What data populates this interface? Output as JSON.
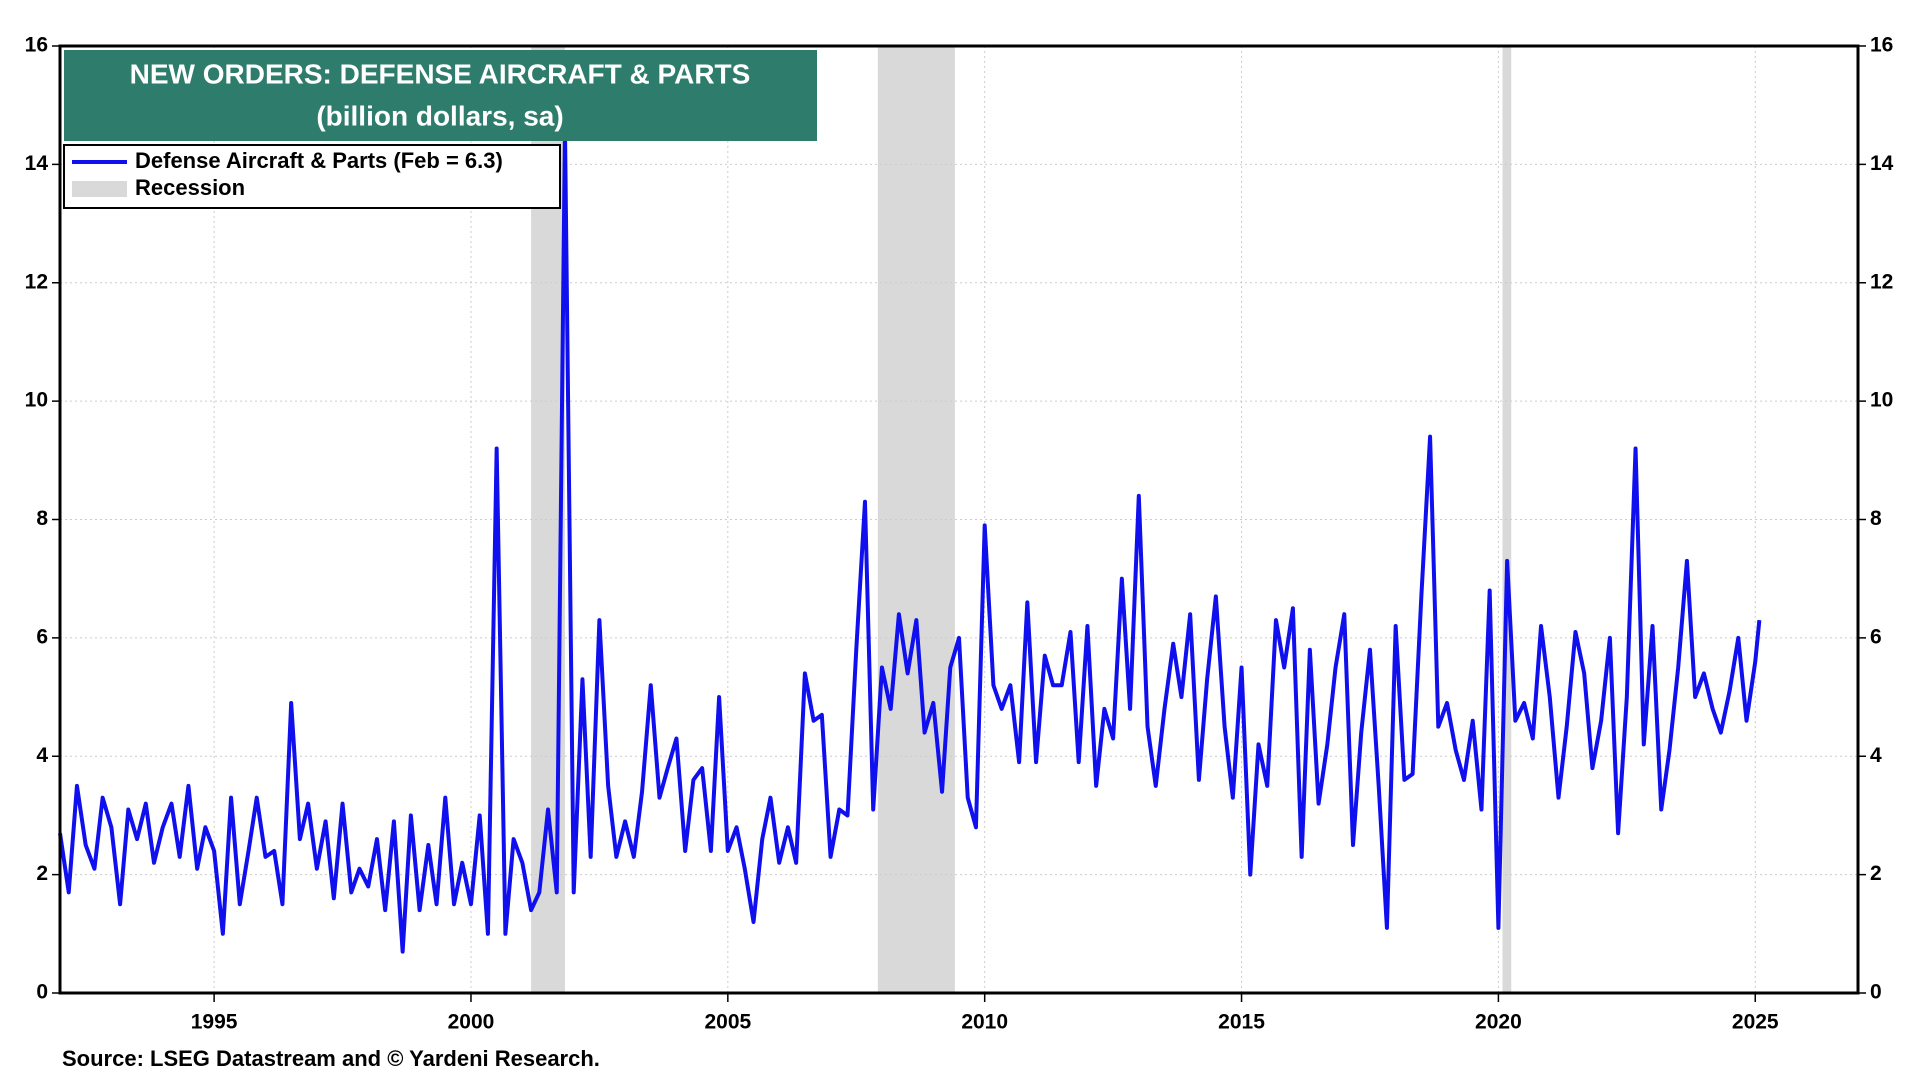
{
  "chart_data": {
    "type": "line",
    "title": "NEW ORDERS:  DEFENSE AIRCRAFT & PARTS",
    "subtitle": "(billion dollars, sa)",
    "source": "Source: LSEG Datastream and © Yardeni Research.",
    "recession_label": "Recession",
    "recession_color": "#d9d9d9",
    "recessions": [
      [
        2001.17,
        2001.83
      ],
      [
        2007.92,
        2009.42
      ],
      [
        2020.08,
        2020.25
      ]
    ],
    "xlim": [
      1992,
      2027
    ],
    "xticks": [
      1995,
      2000,
      2005,
      2010,
      2015,
      2020,
      2025
    ],
    "ylim": [
      0,
      16
    ],
    "yticks": [
      0,
      2,
      4,
      6,
      8,
      10,
      12,
      14,
      16
    ],
    "grid": true,
    "x": [
      1992,
      1992.17,
      1992.33,
      1992.5,
      1992.67,
      1992.83,
      1993,
      1993.17,
      1993.33,
      1993.5,
      1993.67,
      1993.83,
      1994,
      1994.17,
      1994.33,
      1994.5,
      1994.67,
      1994.83,
      1995,
      1995.17,
      1995.33,
      1995.5,
      1995.67,
      1995.83,
      1996,
      1996.17,
      1996.33,
      1996.5,
      1996.67,
      1996.83,
      1997,
      1997.17,
      1997.33,
      1997.5,
      1997.67,
      1997.83,
      1998,
      1998.17,
      1998.33,
      1998.5,
      1998.67,
      1998.83,
      1999,
      1999.17,
      1999.33,
      1999.5,
      1999.67,
      1999.83,
      2000,
      2000.17,
      2000.33,
      2000.5,
      2000.67,
      2000.83,
      2001,
      2001.17,
      2001.33,
      2001.5,
      2001.67,
      2001.83,
      2002,
      2002.17,
      2002.33,
      2002.5,
      2002.67,
      2002.83,
      2003,
      2003.17,
      2003.33,
      2003.5,
      2003.67,
      2003.83,
      2004,
      2004.17,
      2004.33,
      2004.5,
      2004.67,
      2004.83,
      2005,
      2005.17,
      2005.33,
      2005.5,
      2005.67,
      2005.83,
      2006,
      2006.17,
      2006.33,
      2006.5,
      2006.67,
      2006.83,
      2007,
      2007.17,
      2007.33,
      2007.5,
      2007.67,
      2007.83,
      2008,
      2008.17,
      2008.33,
      2008.5,
      2008.67,
      2008.83,
      2009,
      2009.17,
      2009.33,
      2009.5,
      2009.67,
      2009.83,
      2010,
      2010.17,
      2010.33,
      2010.5,
      2010.67,
      2010.83,
      2011,
      2011.17,
      2011.33,
      2011.5,
      2011.67,
      2011.83,
      2012,
      2012.17,
      2012.33,
      2012.5,
      2012.67,
      2012.83,
      2013,
      2013.17,
      2013.33,
      2013.5,
      2013.67,
      2013.83,
      2014,
      2014.17,
      2014.33,
      2014.5,
      2014.67,
      2014.83,
      2015,
      2015.17,
      2015.33,
      2015.5,
      2015.67,
      2015.83,
      2016,
      2016.17,
      2016.33,
      2016.5,
      2016.67,
      2016.83,
      2017,
      2017.17,
      2017.33,
      2017.5,
      2017.67,
      2017.83,
      2018,
      2018.17,
      2018.33,
      2018.5,
      2018.67,
      2018.83,
      2019,
      2019.17,
      2019.33,
      2019.5,
      2019.67,
      2019.83,
      2020,
      2020.17,
      2020.33,
      2020.5,
      2020.67,
      2020.83,
      2021,
      2021.17,
      2021.33,
      2021.5,
      2021.67,
      2021.83,
      2022,
      2022.17,
      2022.33,
      2022.5,
      2022.67,
      2022.83,
      2023,
      2023.17,
      2023.33,
      2023.5,
      2023.67,
      2023.83,
      2024,
      2024.17,
      2024.33,
      2024.5,
      2024.67,
      2024.83,
      2025,
      2025.08
    ],
    "series": [
      {
        "name": "Defense Aircraft & Parts (Feb = 6.3)",
        "color": "#1010ee",
        "values": [
          2.7,
          1.7,
          3.5,
          2.5,
          2.1,
          3.3,
          2.8,
          1.5,
          3.1,
          2.6,
          3.2,
          2.2,
          2.8,
          3.2,
          2.3,
          3.5,
          2.1,
          2.8,
          2.4,
          1.0,
          3.3,
          1.5,
          2.4,
          3.3,
          2.3,
          2.4,
          1.5,
          4.9,
          2.6,
          3.2,
          2.1,
          2.9,
          1.6,
          3.2,
          1.7,
          2.1,
          1.8,
          2.6,
          1.4,
          2.9,
          0.7,
          3.0,
          1.4,
          2.5,
          1.5,
          3.3,
          1.5,
          2.2,
          1.5,
          3.0,
          1.0,
          9.2,
          1.0,
          2.6,
          2.2,
          1.4,
          1.7,
          3.1,
          1.7,
          14.6,
          1.7,
          5.3,
          2.3,
          6.3,
          3.5,
          2.3,
          2.9,
          2.3,
          3.4,
          5.2,
          3.3,
          3.8,
          4.3,
          2.4,
          3.6,
          3.8,
          2.4,
          5.0,
          2.4,
          2.8,
          2.1,
          1.2,
          2.6,
          3.3,
          2.2,
          2.8,
          2.2,
          5.4,
          4.6,
          4.7,
          2.3,
          3.1,
          3.0,
          5.8,
          8.3,
          3.1,
          5.5,
          4.8,
          6.4,
          5.4,
          6.3,
          4.4,
          4.9,
          3.4,
          5.5,
          6.0,
          3.3,
          2.8,
          7.9,
          5.2,
          4.8,
          5.2,
          3.9,
          6.6,
          3.9,
          5.7,
          5.2,
          5.2,
          6.1,
          3.9,
          6.2,
          3.5,
          4.8,
          4.3,
          7.0,
          4.8,
          8.4,
          4.5,
          3.5,
          4.8,
          5.9,
          5.0,
          6.4,
          3.6,
          5.3,
          6.7,
          4.5,
          3.3,
          5.5,
          2.0,
          4.2,
          3.5,
          6.3,
          5.5,
          6.5,
          2.3,
          5.8,
          3.2,
          4.2,
          5.5,
          6.4,
          2.5,
          4.4,
          5.8,
          3.5,
          1.1,
          6.2,
          3.6,
          3.7,
          6.7,
          9.4,
          4.5,
          4.9,
          4.1,
          3.6,
          4.6,
          3.1,
          6.8,
          1.1,
          7.3,
          4.6,
          4.9,
          4.3,
          6.2,
          5.0,
          3.3,
          4.5,
          6.1,
          5.4,
          3.8,
          4.6,
          6.0,
          2.7,
          5.0,
          9.2,
          4.2,
          6.2,
          3.1,
          4.1,
          5.5,
          7.3,
          5.0,
          5.4,
          4.8,
          4.4,
          5.1,
          6.0,
          4.6,
          5.6,
          6.3
        ]
      }
    ]
  }
}
